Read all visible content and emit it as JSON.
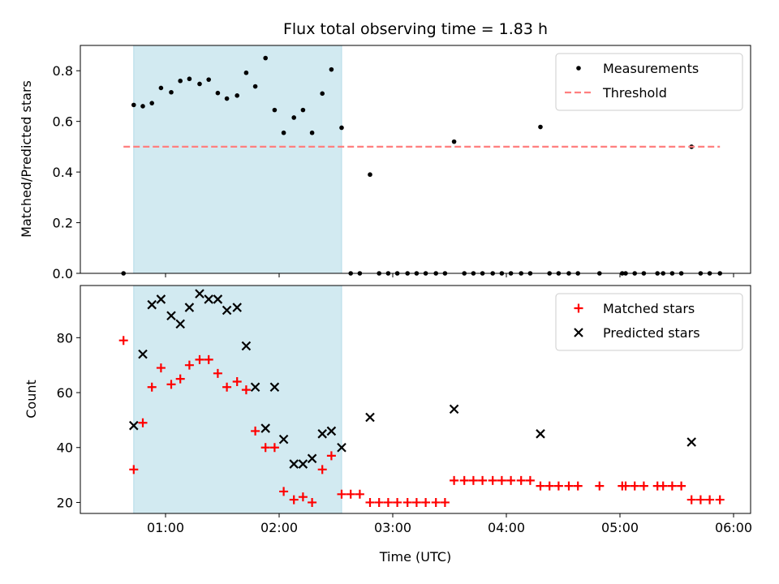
{
  "chart_data": [
    {
      "type": "scatter",
      "title": "Flux total observing time = 1.83 h",
      "ylabel": "Matched/Predicted stars",
      "xlabel": "",
      "xlim": [
        0.25,
        6.15
      ],
      "ylim": [
        0,
        0.9
      ],
      "xticks": [
        "01:00",
        "02:00",
        "03:00",
        "04:00",
        "05:00",
        "06:00"
      ],
      "yticks": [
        "0.0",
        "0.2",
        "0.4",
        "0.6",
        "0.8"
      ],
      "highlight_span_hours": [
        0.72,
        2.55
      ],
      "highlight_color": "#add8e6",
      "legend_position": "top-right",
      "series": [
        {
          "name": "Measurements",
          "color": "#000000",
          "marker": "dot",
          "x": [
            0.63,
            0.72,
            0.8,
            0.88,
            0.96,
            1.05,
            1.13,
            1.21,
            1.3,
            1.38,
            1.46,
            1.54,
            1.63,
            1.71,
            1.79,
            1.88,
            1.96,
            2.04,
            2.13,
            2.21,
            2.29,
            2.38,
            2.46,
            2.55,
            2.63,
            2.71,
            2.8,
            2.88,
            2.96,
            3.04,
            3.13,
            3.21,
            3.29,
            3.38,
            3.46,
            3.54,
            3.63,
            3.71,
            3.79,
            3.88,
            3.96,
            4.04,
            4.13,
            4.21,
            4.3,
            4.38,
            4.46,
            4.55,
            4.63,
            4.82,
            5.02,
            5.05,
            5.13,
            5.21,
            5.33,
            5.38,
            5.46,
            5.54,
            5.63,
            5.71,
            5.79,
            5.88
          ],
          "y": [
            0,
            0.665,
            0.66,
            0.672,
            0.732,
            0.715,
            0.76,
            0.768,
            0.748,
            0.765,
            0.712,
            0.69,
            0.702,
            0.792,
            0.738,
            0.85,
            0.645,
            0.555,
            0.615,
            0.645,
            0.555,
            0.71,
            0.805,
            0.575,
            0,
            0,
            0.39,
            0,
            0,
            0,
            0,
            0,
            0,
            0,
            0,
            0.52,
            0,
            0,
            0,
            0,
            0,
            0,
            0,
            0,
            0.578,
            0,
            0,
            0,
            0,
            0,
            0,
            0,
            0,
            0,
            0,
            0,
            0,
            0,
            0.5,
            0,
            0,
            0
          ]
        },
        {
          "name": "Threshold",
          "color": "#ff7f7f",
          "style": "dashed",
          "x": [
            0.63,
            5.88
          ],
          "y": [
            0.5,
            0.5
          ]
        }
      ]
    },
    {
      "type": "scatter",
      "title": "",
      "ylabel": "Count",
      "xlabel": "Time (UTC)",
      "xlim": [
        0.25,
        6.15
      ],
      "ylim": [
        16,
        99
      ],
      "xticks": [
        "01:00",
        "02:00",
        "03:00",
        "04:00",
        "05:00",
        "06:00"
      ],
      "yticks": [
        "20",
        "40",
        "60",
        "80"
      ],
      "highlight_span_hours": [
        0.72,
        2.55
      ],
      "highlight_color": "#add8e6",
      "legend_position": "top-right",
      "series": [
        {
          "name": "Matched stars",
          "color": "#ff0000",
          "marker": "plus",
          "x": [
            0.63,
            0.72,
            0.8,
            0.88,
            0.96,
            1.05,
            1.13,
            1.21,
            1.3,
            1.38,
            1.46,
            1.54,
            1.63,
            1.71,
            1.79,
            1.88,
            1.96,
            2.04,
            2.13,
            2.21,
            2.29,
            2.38,
            2.46,
            2.55,
            2.63,
            2.71,
            2.8,
            2.88,
            2.96,
            3.04,
            3.13,
            3.21,
            3.29,
            3.38,
            3.46,
            3.54,
            3.63,
            3.71,
            3.79,
            3.88,
            3.96,
            4.04,
            4.13,
            4.21,
            4.3,
            4.38,
            4.46,
            4.55,
            4.63,
            4.82,
            5.02,
            5.05,
            5.13,
            5.21,
            5.33,
            5.38,
            5.46,
            5.54,
            5.63,
            5.71,
            5.79,
            5.88
          ],
          "y": [
            79,
            32,
            49,
            62,
            69,
            63,
            65,
            70,
            72,
            72,
            67,
            62,
            64,
            61,
            46,
            40,
            40,
            24,
            21,
            22,
            20,
            32,
            37,
            23,
            23,
            23,
            20,
            20,
            20,
            20,
            20,
            20,
            20,
            20,
            20,
            28,
            28,
            28,
            28,
            28,
            28,
            28,
            28,
            28,
            26,
            26,
            26,
            26,
            26,
            26,
            26,
            26,
            26,
            26,
            26,
            26,
            26,
            26,
            21,
            21,
            21,
            21
          ]
        },
        {
          "name": "Predicted stars",
          "color": "#000000",
          "marker": "x",
          "x": [
            0.72,
            0.8,
            0.88,
            0.96,
            1.05,
            1.13,
            1.21,
            1.3,
            1.38,
            1.46,
            1.54,
            1.63,
            1.71,
            1.79,
            1.88,
            1.96,
            2.04,
            2.13,
            2.21,
            2.29,
            2.38,
            2.46,
            2.55,
            2.8,
            3.54,
            4.3,
            5.63
          ],
          "y": [
            48,
            74,
            92,
            94,
            88,
            85,
            91,
            96,
            94,
            94,
            90,
            91,
            77,
            62,
            47,
            62,
            43,
            34,
            34,
            36,
            45,
            46,
            40,
            51,
            54,
            45,
            42
          ]
        }
      ]
    }
  ]
}
